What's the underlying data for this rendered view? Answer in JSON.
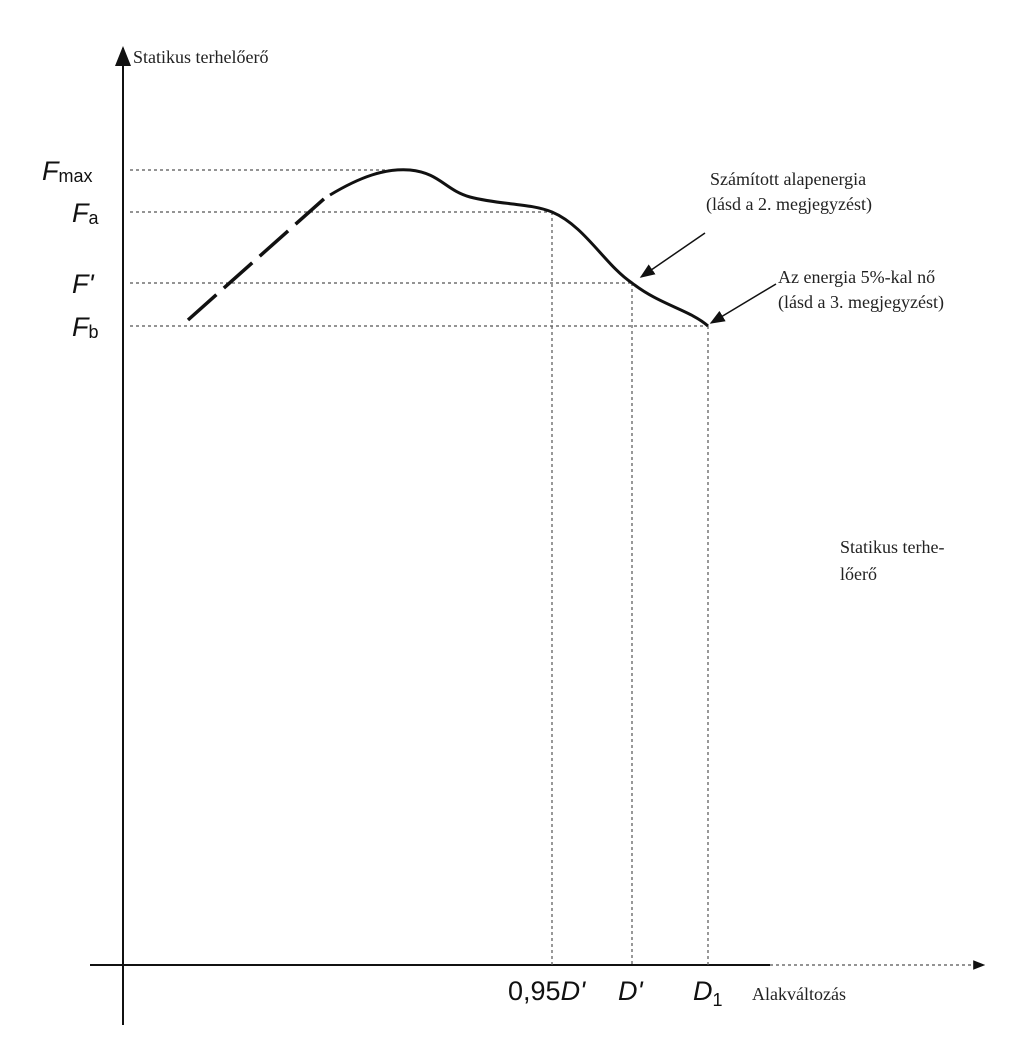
{
  "y_axis": {
    "label": "Statikus terhelőerő",
    "levels": [
      {
        "symbol": "F",
        "sub": "max"
      },
      {
        "symbol": "F",
        "sub": "a"
      },
      {
        "symbol": "F'"
      },
      {
        "symbol": "F",
        "sub": "b"
      }
    ]
  },
  "x_axis": {
    "label": "Alakváltozás",
    "marks": [
      {
        "prefix": "0,95",
        "symbol": "D'"
      },
      {
        "symbol": "D'"
      },
      {
        "symbol": "D",
        "sub": "1"
      }
    ]
  },
  "annotations": [
    {
      "lines": [
        "Számított alapenergia",
        "(lásd a 2. megjegyzést)"
      ]
    },
    {
      "lines": [
        "Az energia 5%-kal nő",
        "(lásd a 3. megjegyzést)"
      ]
    },
    {
      "lines": [
        "Statikus terhe-",
        "lőerő"
      ]
    }
  ]
}
